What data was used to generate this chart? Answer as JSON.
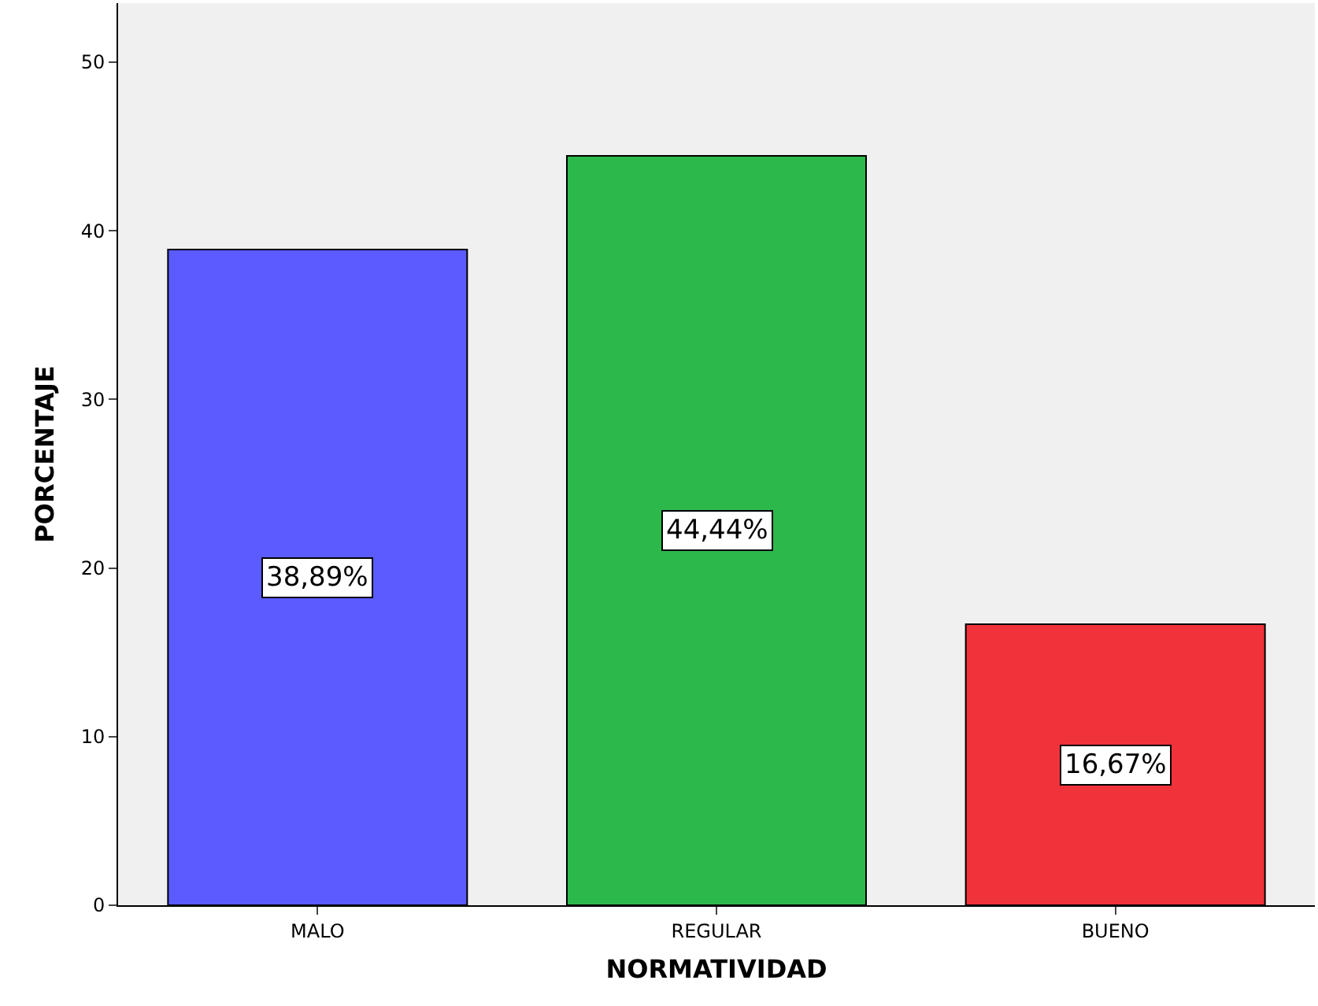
{
  "chart_data": {
    "type": "bar",
    "xlabel": "NORMATIVIDAD",
    "ylabel": "PORCENTAJE",
    "categories": [
      "MALO",
      "REGULAR",
      "BUENO"
    ],
    "values": [
      38.89,
      44.44,
      16.67
    ],
    "colors": [
      "#5b5bff",
      "#2db84b",
      "#f0323a"
    ],
    "value_labels": [
      "38,89%",
      "44,44%",
      "16,67%"
    ],
    "ylim": [
      0,
      53.5
    ],
    "yticks": [
      0,
      10,
      20,
      30,
      40,
      50
    ],
    "grid": false,
    "legend": false
  }
}
